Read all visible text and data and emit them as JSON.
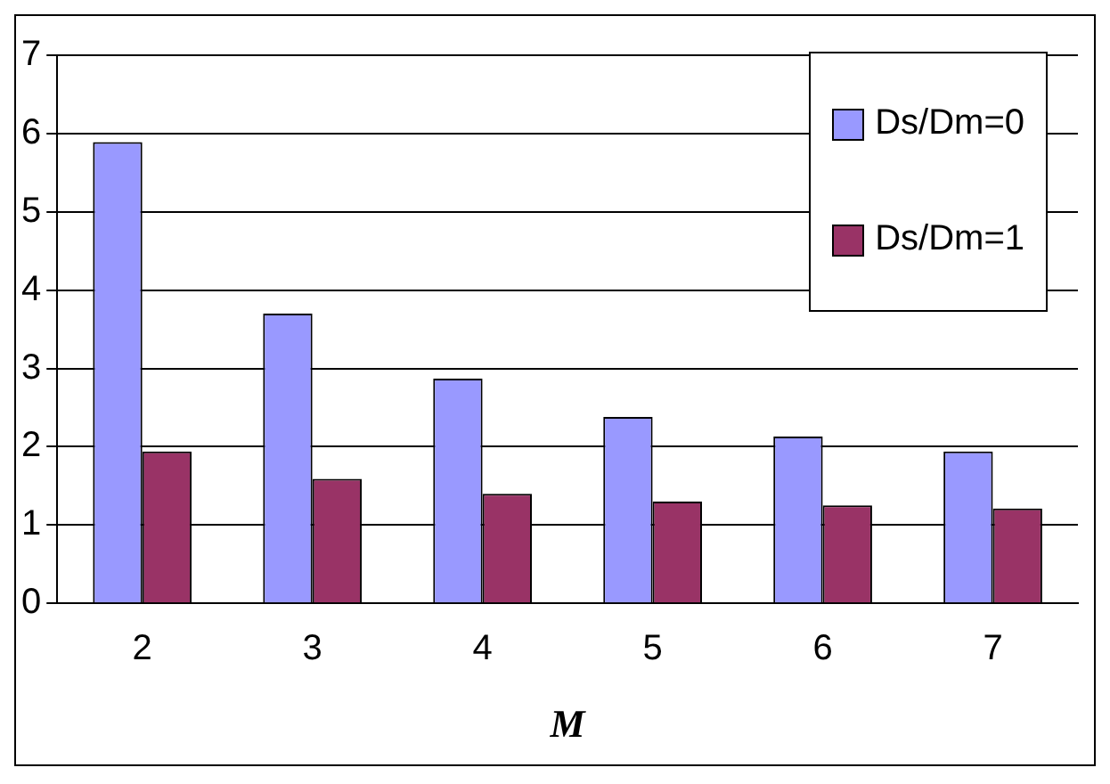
{
  "chart_data": {
    "type": "bar",
    "xlabel": "M",
    "categories": [
      "2",
      "3",
      "4",
      "5",
      "6",
      "7"
    ],
    "series": [
      {
        "name": "Ds/Dm=0",
        "color": "#9999ff",
        "values": [
          5.89,
          3.7,
          2.87,
          2.38,
          2.13,
          1.94
        ]
      },
      {
        "name": "Ds/Dm=1",
        "color": "#993366",
        "values": [
          1.94,
          1.59,
          1.4,
          1.3,
          1.25,
          1.21
        ]
      }
    ],
    "ylim": [
      0,
      7
    ],
    "yticks": [
      0,
      1,
      2,
      3,
      4,
      5,
      6,
      7
    ],
    "grid": "y",
    "legend": "top right"
  }
}
